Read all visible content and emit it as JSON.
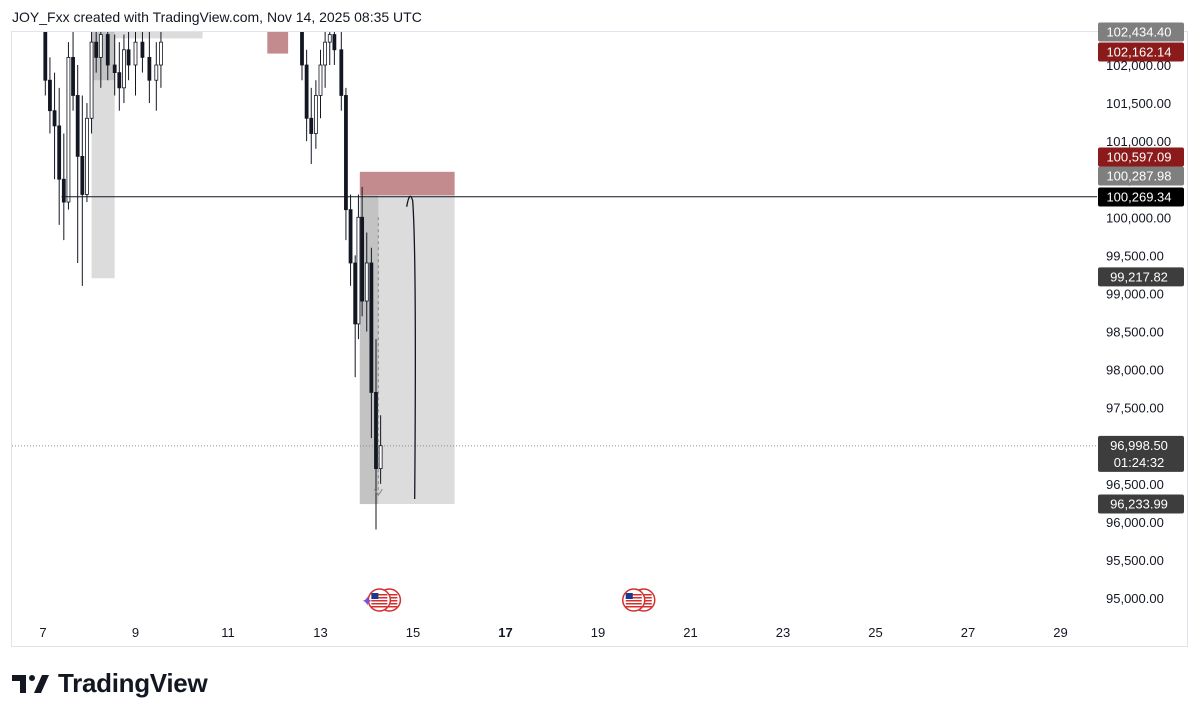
{
  "header": {
    "title": "JOY_Fxx created with TradingView.com, Nov 14, 2025 08:35 UTC"
  },
  "footer": {
    "brand": "TradingView"
  },
  "colors": {
    "up": "#131722",
    "down": "#131722",
    "zone_gray": "#d9d9d9",
    "zone_red": "#c48b8f",
    "tag_red": "#8b1a1a",
    "tag_gray": "#7f7f7f",
    "tag_black": "#000000",
    "tag_dark": "#3d3d3d"
  },
  "chart_data": {
    "type": "candlestick",
    "title": "",
    "ylim": [
      94700,
      102500
    ],
    "y_ticks": [
      95000,
      95500,
      96000,
      96500,
      97000,
      97500,
      98000,
      98500,
      99000,
      99500,
      100000,
      100500,
      101000,
      101500,
      102000
    ],
    "y_tick_labels": [
      "95,000.00",
      "95,500.00",
      "96,000.00",
      "96,500.00",
      "97,000.00",
      "97,500.00",
      "98,000.00",
      "98,500.00",
      "99,000.00",
      "99,500.00",
      "100,000.00",
      "100,500.00",
      "101,000.00",
      "101,500.00",
      "102,000.00"
    ],
    "x_range": [
      6.85,
      30.1
    ],
    "x_ticks": [
      7,
      9,
      11,
      13,
      15,
      17,
      19,
      21,
      23,
      25,
      27,
      29
    ],
    "x_tick_labels": [
      "7",
      "9",
      "11",
      "13",
      "15",
      "17",
      "19",
      "21",
      "23",
      "25",
      "27",
      "29"
    ],
    "x_tick_bold": [
      false,
      false,
      false,
      false,
      false,
      true,
      false,
      false,
      false,
      false,
      false,
      false
    ],
    "candles": [
      [
        7.05,
        102600,
        102800,
        101600,
        101800
      ],
      [
        7.15,
        101800,
        102100,
        101100,
        101400
      ],
      [
        7.25,
        101400,
        101900,
        100500,
        101200
      ],
      [
        7.35,
        101200,
        101700,
        99900,
        100500
      ],
      [
        7.45,
        100500,
        101100,
        99700,
        100200
      ],
      [
        7.55,
        100200,
        102300,
        100100,
        102100
      ],
      [
        7.65,
        102100,
        102600,
        101400,
        101600
      ],
      [
        7.75,
        101600,
        102000,
        99400,
        100800
      ],
      [
        7.85,
        100800,
        101600,
        99100,
        100300
      ],
      [
        7.95,
        100300,
        101500,
        100200,
        101300
      ],
      [
        8.05,
        101300,
        102500,
        101100,
        102300
      ],
      [
        8.15,
        102300,
        102700,
        101900,
        102100
      ],
      [
        8.25,
        102100,
        102600,
        101700,
        102400
      ],
      [
        8.4,
        102400,
        102700,
        101800,
        102000
      ],
      [
        8.55,
        102000,
        102400,
        101600,
        101900
      ],
      [
        8.65,
        101900,
        102300,
        101400,
        101700
      ],
      [
        8.75,
        101700,
        102400,
        101500,
        102200
      ],
      [
        8.85,
        102200,
        102600,
        101800,
        102000
      ],
      [
        9.0,
        102000,
        102500,
        101600,
        102300
      ],
      [
        9.15,
        102300,
        102700,
        101900,
        102100
      ],
      [
        9.3,
        102100,
        102500,
        101500,
        101800
      ],
      [
        9.45,
        101800,
        102300,
        101400,
        102000
      ],
      [
        9.55,
        102000,
        102500,
        101700,
        102300
      ],
      [
        12.6,
        102500,
        102700,
        101800,
        102000
      ],
      [
        12.7,
        102000,
        102200,
        101000,
        101300
      ],
      [
        12.8,
        101300,
        101700,
        100700,
        101100
      ],
      [
        12.9,
        101100,
        101800,
        100900,
        101600
      ],
      [
        13.0,
        101600,
        102200,
        101300,
        102000
      ],
      [
        13.1,
        102000,
        102500,
        101700,
        102300
      ],
      [
        13.2,
        102300,
        102700,
        102000,
        102400
      ],
      [
        13.3,
        102400,
        102800,
        102000,
        102200
      ],
      [
        13.45,
        102200,
        102600,
        101400,
        101600
      ],
      [
        13.55,
        101600,
        101700,
        99700,
        100100
      ],
      [
        13.65,
        100100,
        100300,
        99100,
        99400
      ],
      [
        13.75,
        99400,
        99500,
        97900,
        98600
      ],
      [
        13.82,
        98600,
        100300,
        98400,
        100000
      ],
      [
        13.9,
        100000,
        100400,
        98700,
        98900
      ],
      [
        14.0,
        98900,
        99800,
        98500,
        99400
      ],
      [
        14.1,
        99400,
        99600,
        97100,
        97700
      ],
      [
        14.2,
        97700,
        98400,
        95900,
        96700
      ],
      [
        14.3,
        96700,
        97400,
        96500,
        97000
      ]
    ],
    "zones": [
      {
        "x0": 8.05,
        "x1": 8.55,
        "y0": 99200,
        "y1": 102600,
        "color": "gray"
      },
      {
        "x0": 8.05,
        "x1": 8.55,
        "y0": 101800,
        "y1": 102600,
        "color": "darkgray"
      },
      {
        "x0": 8.55,
        "x1": 10.45,
        "y0": 102350,
        "y1": 102600,
        "color": "gray"
      },
      {
        "x0": 11.85,
        "x1": 12.3,
        "y0": 102150,
        "y1": 102550,
        "color": "red"
      },
      {
        "x0": 13.85,
        "x1": 15.9,
        "y0": 100287.98,
        "y1": 100597.09,
        "color": "red"
      },
      {
        "x0": 13.85,
        "x1": 15.9,
        "y0": 96233.99,
        "y1": 100287.98,
        "color": "gray"
      },
      {
        "x0": 13.85,
        "x1": 14.25,
        "y0": 96233.99,
        "y1": 100287.98,
        "color": "darkgray"
      }
    ],
    "hline": {
      "y": 100269.34,
      "x0": 7.4,
      "x1": 30.1
    },
    "current_price": 96998.5,
    "price_tags": [
      {
        "label": "102,434.40",
        "value": 102434.4,
        "style": "gray"
      },
      {
        "label": "102,162.14",
        "value": 102162.14,
        "style": "red"
      },
      {
        "label": "100,597.09",
        "value": 100597.09,
        "style": "red"
      },
      {
        "label": "100,287.98",
        "value": 100287.98,
        "style": "gray"
      },
      {
        "label": "100,269.34",
        "value": 100269.34,
        "style": "black"
      },
      {
        "label": "99,217.82",
        "value": 99217.82,
        "style": "dark"
      },
      {
        "label": "96,998.50",
        "value": 96998.5,
        "style": "dark",
        "sub": "01:24:32"
      },
      {
        "label": "96,233.99",
        "value": 96233.99,
        "style": "dark"
      }
    ],
    "drawn_path": {
      "x0": 15.05,
      "x_peak": 14.95,
      "y_peak": 100260,
      "y_end": 96300
    },
    "events": [
      {
        "x": 14.1,
        "type": "us-flag-pair-with-star"
      },
      {
        "x": 19.6,
        "type": "us-flag-pair"
      }
    ]
  }
}
